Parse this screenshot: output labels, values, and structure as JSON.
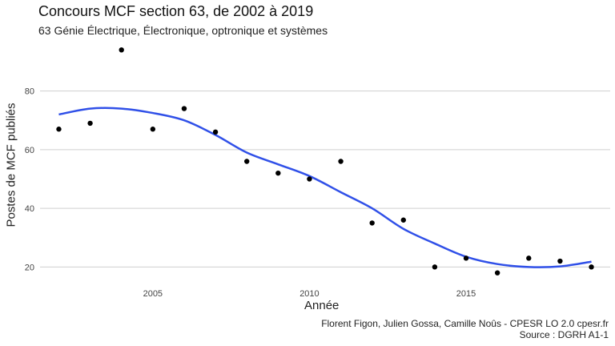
{
  "chart_data": {
    "type": "scatter",
    "title": "Concours MCF section 63, de 2002 à 2019",
    "subtitle": "63 Génie Électrique, Électronique, optronique et systèmes",
    "xlabel": "Année",
    "ylabel": "Postes de MCF publiés",
    "xlim": [
      2001.4,
      2019.6
    ],
    "ylim": [
      16,
      96
    ],
    "xticks": [
      2005,
      2010,
      2015
    ],
    "yticks": [
      20,
      40,
      60,
      80
    ],
    "grid": "horizontal",
    "series": [
      {
        "type": "scatter",
        "color": "#000000",
        "x": [
          2002,
          2003,
          2004,
          2005,
          2006,
          2007,
          2008,
          2009,
          2010,
          2011,
          2012,
          2013,
          2014,
          2015,
          2016,
          2017,
          2018,
          2019
        ],
        "y": [
          67,
          69,
          94,
          67,
          74,
          66,
          56,
          52,
          50,
          56,
          35,
          36,
          20,
          23,
          18,
          23,
          22,
          20
        ]
      },
      {
        "type": "line",
        "style": "smooth",
        "color": "#3050E8",
        "x": [
          2002,
          2003,
          2004,
          2005,
          2006,
          2007,
          2008,
          2009,
          2010,
          2011,
          2012,
          2013,
          2014,
          2015,
          2016,
          2017,
          2018,
          2019
        ],
        "y": [
          72,
          74,
          74,
          72.5,
          70,
          65,
          59,
          55,
          51,
          45.5,
          40,
          33,
          28,
          23.5,
          21,
          20,
          20.2,
          21.8
        ]
      }
    ]
  },
  "caption": {
    "line1": "Florent Figon, Julien Gossa, Camille Noûs - CPESR LO 2.0 cpesr.fr",
    "line2": "Source : DGRH A1-1"
  }
}
